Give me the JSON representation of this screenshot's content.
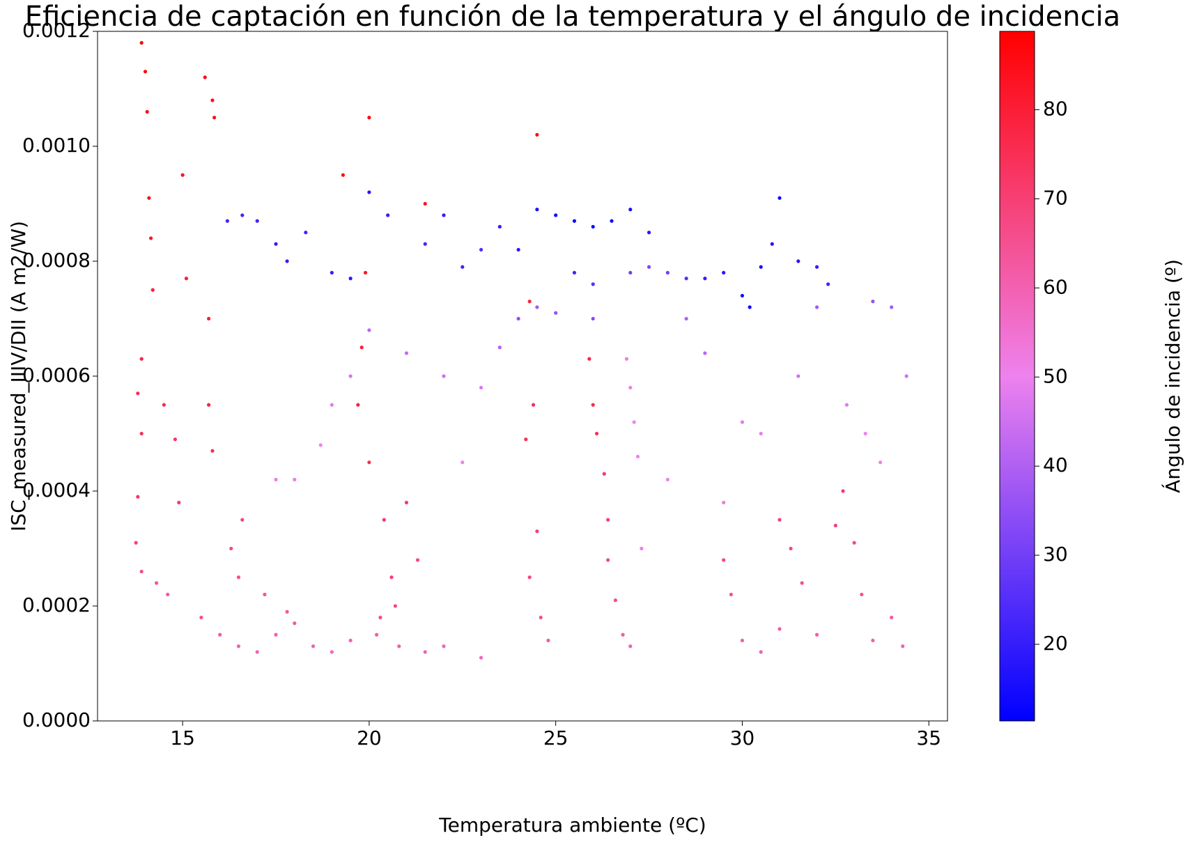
{
  "chart_data": {
    "type": "scatter",
    "title": "Eficiencia de captación en función de la temperatura y el ángulo de incidencia",
    "xlabel": "Temperatura ambiente (ºC)",
    "ylabel": "ISC_measured_IIIV/DII (A m2/W)",
    "colorbar_label": "Ángulo de incidencia (º)",
    "colormap": [
      "#0000ff",
      "#ee82ee",
      "#ff0000"
    ],
    "xlim": [
      12.72,
      35.5
    ],
    "xticks": [
      15,
      20,
      25,
      30,
      35
    ],
    "ylim": [
      0,
      0.0012
    ],
    "yticks": [
      {
        "value": 0,
        "label": "0.0000"
      },
      {
        "value": 0.0002,
        "label": "0.0002"
      },
      {
        "value": 0.0004,
        "label": "0.0004"
      },
      {
        "value": 0.0006,
        "label": "0.0006"
      },
      {
        "value": 0.0008,
        "label": "0.0008"
      },
      {
        "value": 0.001,
        "label": "0.0010"
      },
      {
        "value": 0.0012,
        "label": "0.0012"
      }
    ],
    "clim": [
      11.4,
      88.8
    ],
    "cticks": [
      20,
      30,
      40,
      50,
      60,
      70,
      80
    ],
    "x": [
      13.9,
      14.0,
      14.05,
      14.1,
      14.15,
      14.2,
      13.9,
      13.8,
      13.9,
      13.8,
      13.75,
      13.9,
      14.3,
      14.6,
      15.6,
      15.8,
      15.85,
      15.7,
      15.7,
      15.8,
      15.0,
      15.1,
      14.9,
      14.8,
      14.5,
      15.5,
      16.0,
      16.5,
      17.0,
      17.5,
      18.0,
      18.5,
      19.0,
      19.5,
      20.2,
      20.8,
      21.5,
      22.0,
      23.0,
      16.3,
      16.6,
      16.5,
      17.2,
      17.8,
      20.4,
      20.6,
      20.7,
      20.3,
      21.0,
      21.3,
      19.7,
      19.8,
      19.9,
      20.0,
      19.3,
      20.0,
      21.5,
      24.5,
      24.3,
      24.4,
      24.2,
      24.5,
      24.3,
      24.6,
      24.8,
      25.9,
      26.0,
      26.1,
      26.3,
      26.4,
      26.4,
      26.6,
      26.8,
      27.0,
      26.9,
      27.0,
      27.1,
      27.2,
      29.5,
      29.7,
      30.0,
      30.5,
      31.0,
      31.0,
      31.3,
      31.6,
      32.0,
      32.5,
      32.7,
      33.0,
      33.2,
      33.5,
      34.0,
      34.3,
      16.2,
      16.6,
      17.0,
      17.5,
      17.8,
      18.3,
      19.0,
      19.5,
      20.0,
      20.5,
      21.5,
      22.0,
      22.5,
      23.0,
      23.5,
      24.0,
      24.5,
      25.0,
      25.5,
      26.0,
      26.5,
      27.0,
      27.5,
      25.5,
      26.0,
      27.0,
      27.5,
      28.0,
      28.5,
      29.0,
      29.5,
      30.0,
      30.2,
      30.5,
      30.8,
      31.0,
      31.5,
      32.0,
      32.3,
      24.0,
      24.5,
      25.0,
      26.0,
      23.5,
      22.0,
      21.0,
      20.0,
      19.5,
      19.0,
      18.7,
      18.0,
      17.5,
      22.5,
      23.0,
      28.5,
      29.0,
      30.0,
      30.5,
      31.5,
      32.0,
      32.8,
      33.3,
      33.7,
      34.0,
      34.4,
      33.5,
      28.0,
      29.5,
      27.3
    ],
    "y": [
      0.00118,
      0.00113,
      0.00106,
      0.00091,
      0.00084,
      0.00075,
      0.00063,
      0.00057,
      0.0005,
      0.00039,
      0.00031,
      0.00026,
      0.00024,
      0.00022,
      0.00112,
      0.00108,
      0.00105,
      0.0007,
      0.00055,
      0.00047,
      0.00095,
      0.00077,
      0.00038,
      0.00049,
      0.00055,
      0.00018,
      0.00015,
      0.00013,
      0.00012,
      0.00015,
      0.00017,
      0.00013,
      0.00012,
      0.00014,
      0.00015,
      0.00013,
      0.00012,
      0.00013,
      0.00011,
      0.0003,
      0.00035,
      0.00025,
      0.00022,
      0.00019,
      0.00035,
      0.00025,
      0.0002,
      0.00018,
      0.00038,
      0.00028,
      0.00055,
      0.00065,
      0.00078,
      0.00045,
      0.00095,
      0.00105,
      0.0009,
      0.00102,
      0.00073,
      0.00055,
      0.00049,
      0.00033,
      0.00025,
      0.00018,
      0.00014,
      0.00063,
      0.00055,
      0.0005,
      0.00043,
      0.00035,
      0.00028,
      0.00021,
      0.00015,
      0.00013,
      0.00063,
      0.00058,
      0.00052,
      0.00046,
      0.00028,
      0.00022,
      0.00014,
      0.00012,
      0.00016,
      0.00035,
      0.0003,
      0.00024,
      0.00015,
      0.00034,
      0.0004,
      0.00031,
      0.00022,
      0.00014,
      0.00018,
      0.00013,
      0.00087,
      0.00088,
      0.00087,
      0.00083,
      0.0008,
      0.00085,
      0.00078,
      0.00077,
      0.00092,
      0.00088,
      0.00083,
      0.00088,
      0.00079,
      0.00082,
      0.00086,
      0.00082,
      0.00089,
      0.00088,
      0.00087,
      0.00086,
      0.00087,
      0.00089,
      0.00085,
      0.00078,
      0.00076,
      0.00078,
      0.00079,
      0.00078,
      0.00077,
      0.00077,
      0.00078,
      0.00074,
      0.00072,
      0.00079,
      0.00083,
      0.00091,
      0.0008,
      0.00079,
      0.00076,
      0.0007,
      0.00072,
      0.00071,
      0.0007,
      0.00065,
      0.0006,
      0.00064,
      0.00068,
      0.0006,
      0.00055,
      0.00048,
      0.00042,
      0.00042,
      0.00045,
      0.00058,
      0.0007,
      0.00064,
      0.00052,
      0.0005,
      0.0006,
      0.00072,
      0.00055,
      0.0005,
      0.00045,
      0.00072,
      0.0006,
      0.00073,
      0.00042,
      0.00038,
      0.0003
    ],
    "c": [
      88,
      86,
      85,
      84,
      82,
      80,
      78,
      75,
      74,
      72,
      70,
      66,
      64,
      62,
      86,
      85,
      84,
      80,
      78,
      75,
      83,
      80,
      72,
      73,
      76,
      65,
      62,
      60,
      60,
      61,
      62,
      60,
      58,
      60,
      62,
      61,
      60,
      59,
      58,
      67,
      68,
      66,
      64,
      63,
      72,
      70,
      68,
      66,
      72,
      68,
      78,
      80,
      82,
      75,
      85,
      86,
      84,
      85,
      78,
      75,
      74,
      70,
      68,
      65,
      62,
      78,
      76,
      74,
      72,
      70,
      68,
      66,
      62,
      60,
      52,
      51,
      50,
      50,
      68,
      65,
      61,
      60,
      62,
      70,
      68,
      66,
      62,
      70,
      72,
      68,
      65,
      61,
      62,
      60,
      22,
      23,
      22,
      20,
      20,
      22,
      20,
      18,
      18,
      20,
      22,
      20,
      22,
      25,
      20,
      18,
      16,
      15,
      14,
      14,
      15,
      16,
      18,
      22,
      25,
      30,
      32,
      30,
      25,
      20,
      18,
      15,
      14,
      16,
      18,
      15,
      18,
      20,
      22,
      35,
      38,
      36,
      33,
      40,
      45,
      43,
      42,
      46,
      48,
      50,
      52,
      52,
      50,
      47,
      40,
      42,
      48,
      49,
      45,
      38,
      48,
      50,
      50,
      38,
      45,
      36,
      50,
      52,
      52
    ]
  }
}
